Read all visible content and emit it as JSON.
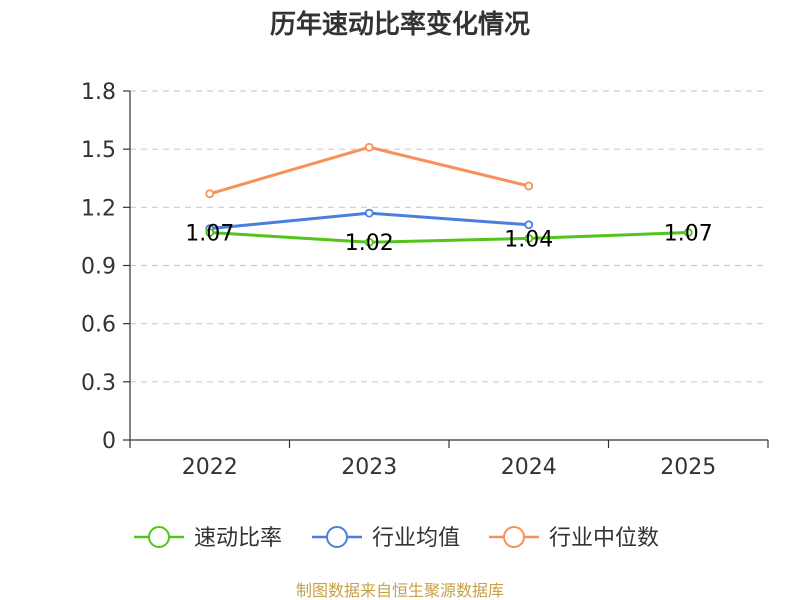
{
  "chart_data": {
    "type": "line",
    "title": "历年速动比率变化情况",
    "categories": [
      "2022",
      "2023",
      "2024",
      "2025"
    ],
    "ylim": [
      0,
      1.8
    ],
    "yticks": [
      "0",
      "0.3",
      "0.6",
      "0.9",
      "1.2",
      "1.5",
      "1.8"
    ],
    "grid": true,
    "legend_position": "bottom",
    "series": [
      {
        "name": "速动比率",
        "color": "#52c41a",
        "values": [
          1.07,
          1.02,
          1.04,
          1.07
        ],
        "labels": [
          "1.07",
          "1.02",
          "1.04",
          "1.07"
        ]
      },
      {
        "name": "行业均值",
        "color": "#4a7fdc",
        "values": [
          1.09,
          1.17,
          1.11,
          null
        ]
      },
      {
        "name": "行业中位数",
        "color": "#f7905a",
        "values": [
          1.27,
          1.51,
          1.31,
          null
        ]
      }
    ]
  },
  "source": "制图数据来自恒生聚源数据库"
}
